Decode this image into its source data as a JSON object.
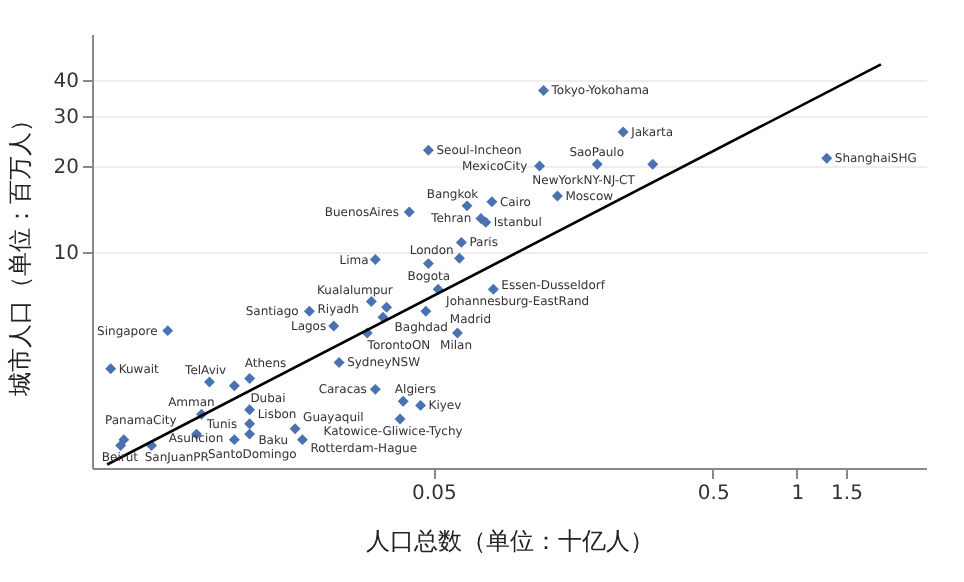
{
  "chart_data": {
    "type": "scatter",
    "xlabel": "人口总数（单位：十亿人）",
    "ylabel": "城市人口（单位：百万人）",
    "log": "xy",
    "xlim": [
      0.003,
      2.9
    ],
    "ylim": [
      1.75,
      58
    ],
    "xticks": [
      0.05,
      0.5,
      1,
      1.5
    ],
    "yticks": [
      10,
      20,
      30,
      40
    ],
    "grid": "y",
    "series": [
      {
        "color": "#4a72b0",
        "marker": "diamond",
        "x": [
          0.124,
          0.239,
          0.048,
          0.12,
          0.193,
          0.305,
          1.28,
          0.139,
          0.041,
          0.066,
          0.081,
          0.074,
          0.077,
          0.063,
          0.062,
          0.031,
          0.048,
          0.052,
          0.082,
          0.03,
          0.034,
          0.047,
          0.033,
          0.018,
          0.022,
          0.029,
          0.061,
          0.0056,
          0.0035,
          0.023,
          0.0079,
          0.011,
          0.0097,
          0.031,
          0.039,
          0.045,
          0.038,
          0.0074,
          0.011,
          0.011,
          0.016,
          0.011,
          0.0039,
          0.0038,
          0.0071,
          0.0049,
          0.0097,
          0.017
        ],
        "values": [
          36.8,
          26.3,
          22.7,
          20,
          20.3,
          20.3,
          21.3,
          15.7,
          13.8,
          14.5,
          15.0,
          13.1,
          12.7,
          10.8,
          9.5,
          9.4,
          9.1,
          7.4,
          7.4,
          6.7,
          6.4,
          6.2,
          5.9,
          6.2,
          5.5,
          5.2,
          5.2,
          5.3,
          3.9,
          4.1,
          3.5,
          3.6,
          3.4,
          3.3,
          3.0,
          2.9,
          2.6,
          2.7,
          2.8,
          2.5,
          2.4,
          2.3,
          2.2,
          2.1,
          2.3,
          2.1,
          2.2,
          2.2
        ]
      },
      {
        "type": "line",
        "color": "#000000",
        "x": [
          0.0034,
          2.0
        ],
        "values": [
          1.8,
          45.4
        ]
      }
    ],
    "annotations": [
      {
        "text": "Tokyo-Yokohama",
        "x": 0.124,
        "y": 36.8
      },
      {
        "text": "Jakarta",
        "x": 0.239,
        "y": 26.3
      },
      {
        "text": "Seoul-Incheon",
        "x": 0.048,
        "y": 22.7
      },
      {
        "text": "MexicoCity",
        "x": 0.12,
        "y": 20
      },
      {
        "text": "SaoPaulo",
        "x": 0.193,
        "y": 20.3
      },
      {
        "text": "NewYorkNY-NJ-CT",
        "x": 0.305,
        "y": 20.3
      },
      {
        "text": "ShanghaiSHG",
        "x": 1.28,
        "y": 21.3
      },
      {
        "text": "Moscow",
        "x": 0.139,
        "y": 15.7
      },
      {
        "text": "BuenosAires",
        "x": 0.041,
        "y": 13.8
      },
      {
        "text": "Bangkok",
        "x": 0.066,
        "y": 14.5
      },
      {
        "text": "Cairo",
        "x": 0.081,
        "y": 15.0
      },
      {
        "text": "Tehran",
        "x": 0.074,
        "y": 13.1
      },
      {
        "text": "Istanbul",
        "x": 0.077,
        "y": 12.7
      },
      {
        "text": "Paris",
        "x": 0.063,
        "y": 10.8
      },
      {
        "text": "London",
        "x": 0.062,
        "y": 9.5
      },
      {
        "text": "Lima",
        "x": 0.031,
        "y": 9.4
      },
      {
        "text": "Bogota",
        "x": 0.048,
        "y": 9.1
      },
      {
        "text": "Johannesburg-EastRand",
        "x": 0.052,
        "y": 7.4
      },
      {
        "text": "Essen-Dusseldorf",
        "x": 0.082,
        "y": 7.4
      },
      {
        "text": "Kualalumpur",
        "x": 0.03,
        "y": 6.7
      },
      {
        "text": "Baghdad",
        "x": 0.034,
        "y": 6.4
      },
      {
        "text": "Madrid",
        "x": 0.047,
        "y": 6.2
      },
      {
        "text": "TorontoON",
        "x": 0.033,
        "y": 5.9
      },
      {
        "text": "Santiago",
        "x": 0.018,
        "y": 6.2
      },
      {
        "text": "Lagos",
        "x": 0.022,
        "y": 5.5
      },
      {
        "text": "Riyadh",
        "x": 0.029,
        "y": 5.2
      },
      {
        "text": "Milan",
        "x": 0.061,
        "y": 5.2
      },
      {
        "text": "Singapore",
        "x": 0.0056,
        "y": 5.3
      },
      {
        "text": "Kuwait",
        "x": 0.0035,
        "y": 3.9
      },
      {
        "text": "SydneyNSW",
        "x": 0.023,
        "y": 4.1
      },
      {
        "text": "TelAviv",
        "x": 0.0079,
        "y": 3.5
      },
      {
        "text": "Athens",
        "x": 0.011,
        "y": 3.6
      },
      {
        "text": "Dubai",
        "x": 0.0097,
        "y": 3.4
      },
      {
        "text": "Caracas",
        "x": 0.031,
        "y": 3.3
      },
      {
        "text": "Algiers",
        "x": 0.039,
        "y": 3.0
      },
      {
        "text": "Kiyev",
        "x": 0.045,
        "y": 2.9
      },
      {
        "text": "Katowice-Gliwice-Tychy",
        "x": 0.038,
        "y": 2.6
      },
      {
        "text": "Amman",
        "x": 0.0074,
        "y": 2.7
      },
      {
        "text": "Lisbon",
        "x": 0.011,
        "y": 2.8
      },
      {
        "text": "Tunis",
        "x": 0.011,
        "y": 2.5
      },
      {
        "text": "Guayaquil",
        "x": 0.016,
        "y": 2.4
      },
      {
        "text": "SantoDomingo",
        "x": 0.011,
        "y": 2.3
      },
      {
        "text": "PanamaCity",
        "x": 0.0039,
        "y": 2.2
      },
      {
        "text": "SanJuanPR",
        "x": 0.0038,
        "y": 2.1
      },
      {
        "text": "Asuncion",
        "x": 0.0071,
        "y": 2.3
      },
      {
        "text": "Beirut",
        "x": 0.0049,
        "y": 2.1
      },
      {
        "text": "Baku",
        "x": 0.0097,
        "y": 2.2
      },
      {
        "text": "Rotterdam-Hague",
        "x": 0.017,
        "y": 2.2
      }
    ]
  }
}
